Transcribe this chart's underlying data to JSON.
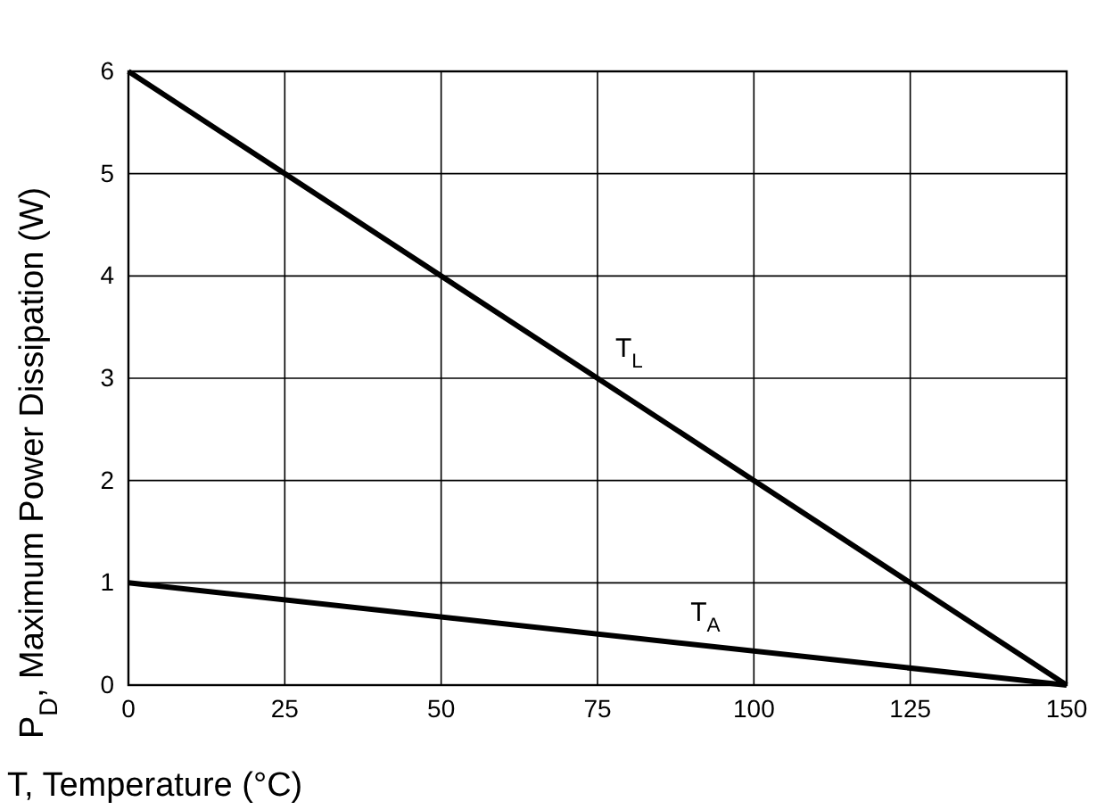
{
  "chart_data": {
    "type": "line",
    "xlabel": "T, Temperature (°C)",
    "ylabel": "P$_{D}$, Maximum Power Dissipation (W)",
    "x": [
      0,
      150
    ],
    "series": [
      {
        "name": "T$_{L}$",
        "color": "#000000",
        "values": [
          6,
          0
        ]
      },
      {
        "name": "T$_{A}$",
        "color": "#000000",
        "values": [
          1,
          0
        ]
      }
    ],
    "xlim": [
      0,
      150
    ],
    "xticks": [
      0,
      25,
      50,
      75,
      100,
      125,
      150
    ],
    "ylim": [
      0,
      6
    ],
    "yticks": [
      0,
      1,
      2,
      3,
      4,
      5,
      6
    ],
    "grid": true,
    "marker": "none",
    "line_style": "solid"
  }
}
